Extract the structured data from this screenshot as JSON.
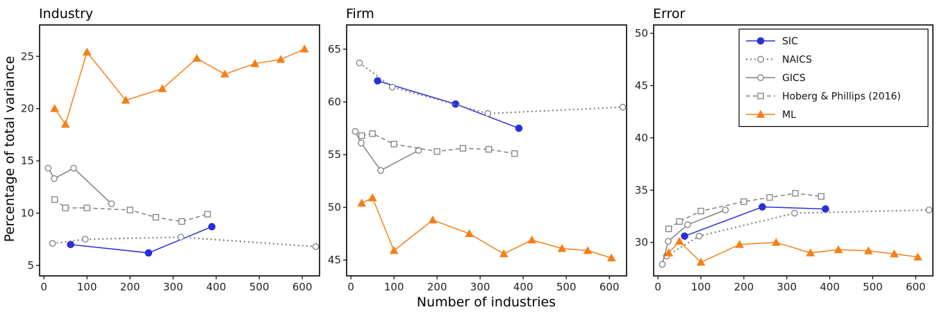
{
  "figure": {
    "xlabel": "Number of industries",
    "ylabel": "Percentage of total variance"
  },
  "legend": {
    "placement": "top-right of Error panel",
    "entries": [
      "SIC",
      "NAICS",
      "GICS",
      "Hoberg & Phillips (2016)",
      "ML"
    ]
  },
  "styles": {
    "SIC": {
      "color": "#2b2fd6",
      "dash": "",
      "marker": "circle-filled"
    },
    "NAICS": {
      "color": "#7f7f7f",
      "dash": "dotted",
      "marker": "circle-open"
    },
    "GICS": {
      "color": "#7f7f7f",
      "dash": "",
      "marker": "circle-open"
    },
    "Hoberg & Phillips (2016)": {
      "color": "#7f7f7f",
      "dash": "dashed",
      "marker": "square-open"
    },
    "ML": {
      "color": "#f57f17",
      "dash": "",
      "marker": "triangle-filled"
    }
  },
  "chart_data": [
    {
      "type": "line",
      "title": "Industry",
      "xlabel": "",
      "ylabel": "Percentage of total variance",
      "xlim": [
        -10,
        640
      ],
      "ylim": [
        4,
        28
      ],
      "xticks": [
        0,
        100,
        200,
        300,
        400,
        500,
        600
      ],
      "yticks": [
        5,
        10,
        15,
        20,
        25
      ],
      "series": [
        {
          "name": "SIC",
          "x": [
            62,
            243,
            390
          ],
          "y": [
            7.0,
            6.2,
            8.7
          ]
        },
        {
          "name": "NAICS",
          "x": [
            20,
            96,
            318,
            631
          ],
          "y": [
            7.1,
            7.5,
            7.7,
            6.8
          ]
        },
        {
          "name": "GICS",
          "x": [
            10,
            24,
            69,
            157
          ],
          "y": [
            14.3,
            13.3,
            14.3,
            10.9
          ]
        },
        {
          "name": "Hoberg & Phillips (2016)",
          "x": [
            25,
            50,
            100,
            200,
            260,
            320,
            380
          ],
          "y": [
            11.3,
            10.5,
            10.5,
            10.3,
            9.6,
            9.2,
            9.9
          ]
        },
        {
          "name": "ML",
          "x": [
            25,
            50,
            100,
            190,
            275,
            355,
            420,
            490,
            550,
            605
          ],
          "y": [
            20.0,
            18.5,
            25.4,
            20.8,
            21.9,
            24.8,
            23.3,
            24.3,
            24.7,
            25.7
          ]
        }
      ]
    },
    {
      "type": "line",
      "title": "Firm",
      "xlabel": "Number of industries",
      "ylabel": "",
      "xlim": [
        -10,
        640
      ],
      "ylim": [
        43.5,
        67.3
      ],
      "xticks": [
        0,
        100,
        200,
        300,
        400,
        500,
        600
      ],
      "yticks": [
        45,
        50,
        55,
        60,
        65
      ],
      "series": [
        {
          "name": "SIC",
          "x": [
            62,
            243,
            390
          ],
          "y": [
            62.0,
            59.8,
            57.5
          ]
        },
        {
          "name": "NAICS",
          "x": [
            20,
            96,
            318,
            631
          ],
          "y": [
            63.7,
            61.4,
            58.9,
            59.5
          ]
        },
        {
          "name": "GICS",
          "x": [
            10,
            24,
            69,
            157
          ],
          "y": [
            57.2,
            56.1,
            53.5,
            55.4
          ]
        },
        {
          "name": "Hoberg & Phillips (2016)",
          "x": [
            25,
            50,
            100,
            200,
            260,
            320,
            380
          ],
          "y": [
            56.8,
            57.0,
            56.0,
            55.3,
            55.6,
            55.5,
            55.1
          ]
        },
        {
          "name": "ML",
          "x": [
            25,
            50,
            100,
            190,
            275,
            355,
            420,
            490,
            550,
            605
          ],
          "y": [
            50.4,
            50.9,
            45.9,
            48.8,
            47.5,
            45.6,
            46.9,
            46.1,
            45.9,
            45.2
          ]
        }
      ]
    },
    {
      "type": "line",
      "title": "Error",
      "xlabel": "",
      "ylabel": "",
      "xlim": [
        -10,
        640
      ],
      "ylim": [
        26.8,
        50.8
      ],
      "xticks": [
        0,
        100,
        200,
        300,
        400,
        500,
        600
      ],
      "yticks": [
        30,
        35,
        40,
        45,
        50
      ],
      "series": [
        {
          "name": "SIC",
          "x": [
            62,
            243,
            390
          ],
          "y": [
            30.6,
            33.4,
            33.2
          ]
        },
        {
          "name": "NAICS",
          "x": [
            20,
            96,
            318,
            631
          ],
          "y": [
            28.7,
            30.6,
            32.8,
            33.1
          ]
        },
        {
          "name": "GICS",
          "x": [
            10,
            24,
            69,
            157
          ],
          "y": [
            27.9,
            30.1,
            31.7,
            33.1
          ]
        },
        {
          "name": "Hoberg & Phillips (2016)",
          "x": [
            25,
            50,
            100,
            200,
            260,
            320,
            380
          ],
          "y": [
            31.3,
            32.0,
            33.0,
            33.9,
            34.3,
            34.7,
            34.4
          ]
        },
        {
          "name": "ML",
          "x": [
            25,
            50,
            100,
            190,
            275,
            355,
            420,
            490,
            550,
            605
          ],
          "y": [
            29.0,
            30.1,
            28.1,
            29.8,
            30.0,
            29.0,
            29.3,
            29.2,
            28.9,
            28.6
          ]
        }
      ]
    }
  ]
}
